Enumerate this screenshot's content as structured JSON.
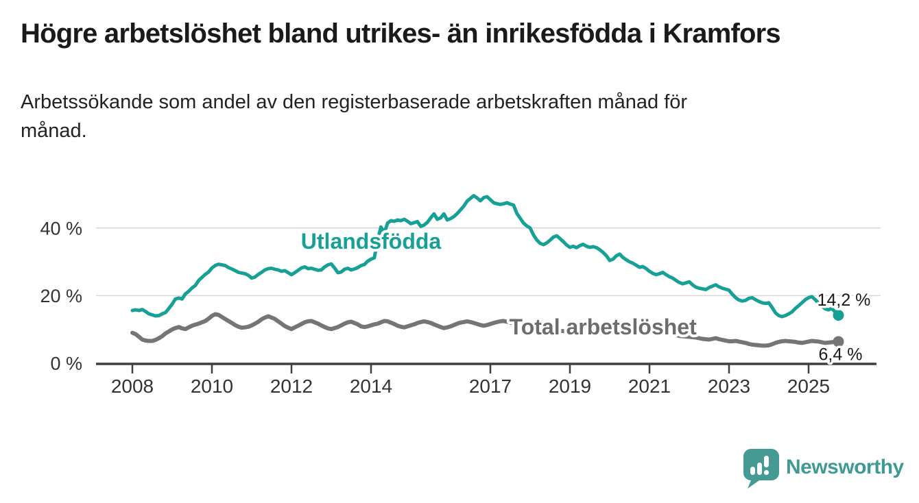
{
  "header": {
    "title": "Högre arbetslöshet bland utrikes- än inrikesfödda i Kramfors",
    "subtitle_line1": "Arbetssökande som andel av den registerbaserade arbetskraften månad för",
    "subtitle_line2": "månad."
  },
  "branding": {
    "logo_text": "Newsworthy",
    "logo_color": "#459a94",
    "logo_text_color": "#3f9a94"
  },
  "chart_data": {
    "type": "line",
    "title": "Högre arbetslöshet bland utrikes- än inrikesfödda i Kramfors",
    "subtitle": "Arbetssökande som andel av den registerbaserade arbetskraften månad för månad.",
    "unit": "%",
    "x_axis": {
      "start_year": 2008,
      "end_year": 2025.83,
      "interval": "monthly",
      "ticks": [
        {
          "year": 2008,
          "label": "2008"
        },
        {
          "year": 2010,
          "label": "2010"
        },
        {
          "year": 2012,
          "label": "2012"
        },
        {
          "year": 2014,
          "label": "2014"
        },
        {
          "year": 2017,
          "label": "2017"
        },
        {
          "year": 2019,
          "label": "2019"
        },
        {
          "year": 2021,
          "label": "2021"
        },
        {
          "year": 2023,
          "label": "2023"
        },
        {
          "year": 2025,
          "label": "2025"
        }
      ]
    },
    "y_axis": {
      "ylim": [
        0,
        52
      ],
      "ticks": [
        {
          "value": 0,
          "label": "0 %",
          "gridline": false
        },
        {
          "value": 20,
          "label": "20 %",
          "gridline": true
        },
        {
          "value": 40,
          "label": "40 %",
          "gridline": true
        }
      ]
    },
    "legend_position": "inline-labels",
    "grid": "horizontal-only",
    "series": [
      {
        "name": "Utlandsfödda",
        "color": "#16a096",
        "stroke_width": 5,
        "end_label": "14,2 %",
        "end_value": 14.2,
        "label_anchor": {
          "year": 2014.0,
          "value": 36.1
        },
        "start_year": 2008,
        "values": [
          15.6,
          15.8,
          15.6,
          15.9,
          15.3,
          14.6,
          14.3,
          14.0,
          14.1,
          14.6,
          15.0,
          16.2,
          17.5,
          19.0,
          19.3,
          19.0,
          20.5,
          21.3,
          22.3,
          23.0,
          24.5,
          25.4,
          26.3,
          27.0,
          28.2,
          28.9,
          29.3,
          29.1,
          28.9,
          28.3,
          27.9,
          27.4,
          26.9,
          26.7,
          26.5,
          26.0,
          25.2,
          25.5,
          26.3,
          26.9,
          27.6,
          28.0,
          28.1,
          27.8,
          27.6,
          27.2,
          27.4,
          26.8,
          26.2,
          26.8,
          27.5,
          28.2,
          28.5,
          28.0,
          28.1,
          27.8,
          27.5,
          27.6,
          28.5,
          29.1,
          29.4,
          28.2,
          26.8,
          27.0,
          27.8,
          28.1,
          27.6,
          27.9,
          28.3,
          28.9,
          29.2,
          30.2,
          30.8,
          31.2,
          36.5,
          40.3,
          38.5,
          41.5,
          42.2,
          42.0,
          42.4,
          42.2,
          42.6,
          42.0,
          41.3,
          41.6,
          41.9,
          40.5,
          40.9,
          41.7,
          43.0,
          44.2,
          42.6,
          43.0,
          44.2,
          42.4,
          42.8,
          43.4,
          44.3,
          45.4,
          46.5,
          48.0,
          48.8,
          49.6,
          48.9,
          48.1,
          49.0,
          49.3,
          48.4,
          47.5,
          47.2,
          47.0,
          47.2,
          47.5,
          47.1,
          46.8,
          44.3,
          42.9,
          41.5,
          40.6,
          40.0,
          38.0,
          36.5,
          35.5,
          35.1,
          35.6,
          36.4,
          37.3,
          37.7,
          36.9,
          36.0,
          35.0,
          34.3,
          34.6,
          34.2,
          34.8,
          35.2,
          34.6,
          34.3,
          34.5,
          34.2,
          33.6,
          32.8,
          31.8,
          30.4,
          30.8,
          31.8,
          32.3,
          31.3,
          30.6,
          30.0,
          29.6,
          29.0,
          28.4,
          28.6,
          28.0,
          27.2,
          26.6,
          26.2,
          26.5,
          26.9,
          26.2,
          25.6,
          25.2,
          24.5,
          23.9,
          23.5,
          23.8,
          24.1,
          23.2,
          22.5,
          22.2,
          22.0,
          21.8,
          22.4,
          22.8,
          23.2,
          22.6,
          22.2,
          21.9,
          21.6,
          20.4,
          19.4,
          18.7,
          18.4,
          18.6,
          19.2,
          19.4,
          18.8,
          18.3,
          17.9,
          17.7,
          17.9,
          16.5,
          14.9,
          14.1,
          13.8,
          14.1,
          14.6,
          15.2,
          16.2,
          17.0,
          17.9,
          18.8,
          19.4,
          19.7,
          18.8,
          17.8,
          16.9,
          16.1,
          15.8,
          16.2,
          15.2,
          14.2
        ]
      },
      {
        "name": "Total arbetslöshet",
        "color": "#757575",
        "label_color": "#6d6d6d",
        "stroke_width": 6,
        "end_label": "6,4 %",
        "end_value": 6.4,
        "label_anchor": {
          "year": 2019.83,
          "value": 10.75
        },
        "start_year": 2008,
        "values": [
          9.0,
          8.6,
          7.8,
          7.0,
          6.7,
          6.6,
          6.6,
          6.9,
          7.4,
          8.0,
          8.8,
          9.4,
          10.0,
          10.4,
          10.7,
          10.3,
          10.1,
          10.6,
          11.1,
          11.4,
          11.7,
          12.1,
          12.5,
          13.2,
          14.0,
          14.5,
          14.3,
          13.7,
          13.1,
          12.5,
          11.9,
          11.3,
          10.8,
          10.5,
          10.6,
          10.8,
          11.2,
          11.7,
          12.3,
          13.0,
          13.5,
          13.9,
          13.5,
          13.1,
          12.4,
          11.7,
          11.0,
          10.5,
          10.1,
          10.6,
          11.1,
          11.6,
          12.1,
          12.4,
          12.5,
          12.1,
          11.7,
          11.2,
          10.7,
          10.3,
          10.1,
          10.4,
          10.7,
          11.2,
          11.7,
          12.1,
          12.3,
          11.9,
          11.5,
          10.9,
          10.7,
          10.9,
          11.2,
          11.5,
          11.7,
          12.1,
          12.5,
          12.4,
          12.0,
          11.6,
          11.1,
          10.8,
          10.6,
          10.9,
          11.2,
          11.5,
          11.9,
          12.2,
          12.4,
          12.2,
          11.9,
          11.5,
          11.1,
          10.7,
          10.4,
          10.6,
          10.9,
          11.3,
          11.7,
          12.0,
          12.2,
          12.4,
          12.2,
          11.9,
          11.6,
          11.3,
          11.1,
          11.3,
          11.6,
          11.9,
          12.2,
          12.4,
          12.5,
          12.3,
          12.0,
          11.7,
          11.4,
          11.1,
          10.9,
          10.7,
          10.6,
          10.4,
          10.2,
          10.1,
          10.0,
          9.9,
          9.8,
          9.7,
          9.7,
          9.6,
          9.5,
          9.4,
          9.3,
          9.4,
          9.5,
          9.6,
          9.5,
          9.4,
          9.2,
          9.1,
          9.0,
          8.9,
          8.9,
          9.0,
          9.1,
          9.4,
          9.9,
          10.4,
          10.6,
          10.5,
          10.3,
          10.1,
          9.9,
          9.7,
          9.6,
          9.5,
          9.4,
          9.3,
          9.2,
          9.0,
          8.9,
          8.7,
          8.6,
          8.4,
          8.3,
          8.1,
          8.0,
          7.9,
          7.8,
          7.7,
          7.6,
          7.4,
          7.2,
          7.1,
          7.0,
          7.2,
          7.4,
          7.1,
          6.9,
          6.7,
          6.5,
          6.5,
          6.6,
          6.4,
          6.2,
          6.0,
          5.7,
          5.5,
          5.4,
          5.3,
          5.2,
          5.2,
          5.3,
          5.6,
          6.0,
          6.3,
          6.5,
          6.6,
          6.5,
          6.4,
          6.3,
          6.1,
          6.0,
          6.2,
          6.4,
          6.6,
          6.5,
          6.4,
          6.2,
          6.0,
          6.1,
          6.2,
          6.3,
          6.4
        ]
      }
    ]
  }
}
